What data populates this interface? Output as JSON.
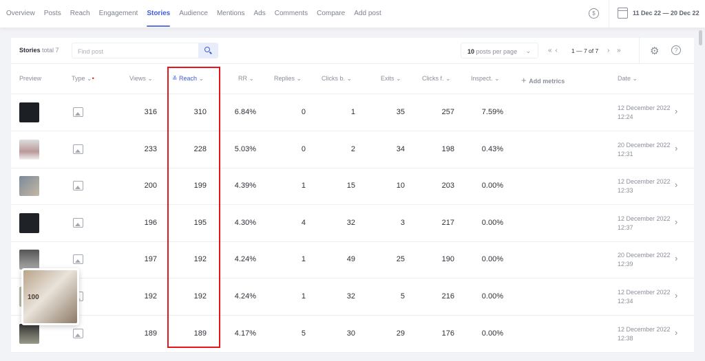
{
  "nav": {
    "tabs": [
      "Overview",
      "Posts",
      "Reach",
      "Engagement",
      "Stories",
      "Audience",
      "Mentions",
      "Ads",
      "Comments",
      "Compare",
      "Add post"
    ],
    "active": "Stories",
    "currency_icon": "dollar-circle-icon",
    "date_range": "11 Dec 22 — 20 Dec 22"
  },
  "toolbar": {
    "title": "Stories",
    "total": "total 7",
    "search_placeholder": "Find post",
    "per_page_value": "10",
    "per_page_label": "posts per page",
    "pagination": "1 — 7 of 7"
  },
  "columns": [
    "Preview",
    "Type",
    "Views",
    "Reach",
    "RR",
    "Replies",
    "Clicks b.",
    "Exits",
    "Clicks f.",
    "Inspect.",
    "Add metrics",
    "Date"
  ],
  "rows": [
    {
      "views": "316",
      "reach": "310",
      "rr": "6.84%",
      "replies": "0",
      "clicks_b": "1",
      "exits": "35",
      "clicks_f": "257",
      "inspect": "7.59%",
      "date": "12 December 2022",
      "time": "12:24"
    },
    {
      "views": "233",
      "reach": "228",
      "rr": "5.03%",
      "replies": "0",
      "clicks_b": "2",
      "exits": "34",
      "clicks_f": "198",
      "inspect": "0.43%",
      "date": "20 December 2022",
      "time": "12:31"
    },
    {
      "views": "200",
      "reach": "199",
      "rr": "4.39%",
      "replies": "1",
      "clicks_b": "15",
      "exits": "10",
      "clicks_f": "203",
      "inspect": "0.00%",
      "date": "12 December 2022",
      "time": "12:33"
    },
    {
      "views": "196",
      "reach": "195",
      "rr": "4.30%",
      "replies": "4",
      "clicks_b": "32",
      "exits": "3",
      "clicks_f": "217",
      "inspect": "0.00%",
      "date": "12 December 2022",
      "time": "12:37"
    },
    {
      "views": "197",
      "reach": "192",
      "rr": "4.24%",
      "replies": "1",
      "clicks_b": "49",
      "exits": "25",
      "clicks_f": "190",
      "inspect": "0.00%",
      "date": "20 December 2022",
      "time": "12:39"
    },
    {
      "views": "192",
      "reach": "192",
      "rr": "4.24%",
      "replies": "1",
      "clicks_b": "32",
      "exits": "5",
      "clicks_f": "216",
      "inspect": "0.00%",
      "date": "12 December 2022",
      "time": "12:34"
    },
    {
      "views": "189",
      "reach": "189",
      "rr": "4.17%",
      "replies": "5",
      "clicks_b": "30",
      "exits": "29",
      "clicks_f": "176",
      "inspect": "0.00%",
      "date": "12 December 2022",
      "time": "12:38"
    }
  ],
  "popup": {
    "image_text": "100"
  },
  "colors": {
    "accent": "#3f5bd8",
    "highlight": "#e8141a"
  }
}
